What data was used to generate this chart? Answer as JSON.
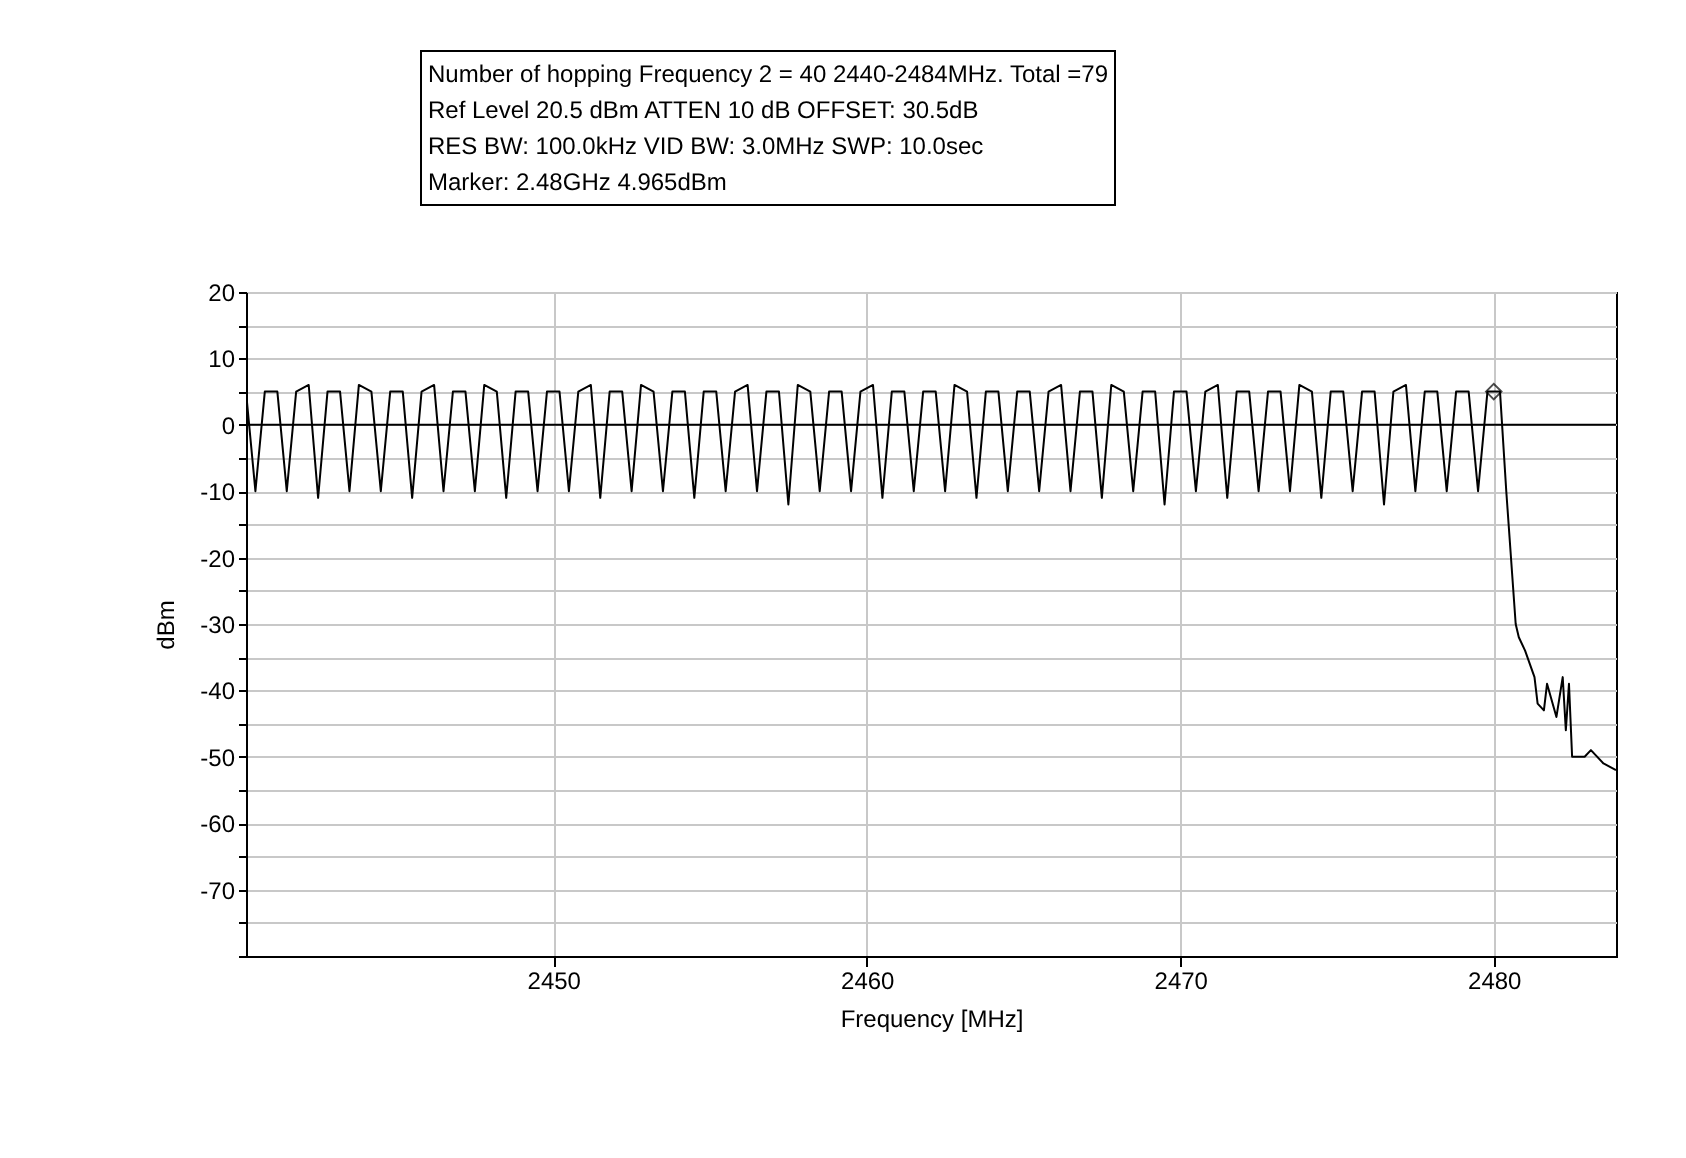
{
  "chart_data": {
    "type": "line",
    "xlabel": "Frequency [MHz]",
    "ylabel": "dBm",
    "annotations": [
      "Number of hopping Frequency  2 = 40  2440-2484MHz. Total =79",
      "Ref Level 20.5 dBm    ATTEN 10 dB    OFFSET: 30.5dB",
      "RES BW: 100.0kHz  VID BW: 3.0MHz  SWP: 10.0sec",
      "Marker: 2.48GHz  4.965dBm"
    ],
    "xlim": [
      2440.2,
      2483.9
    ],
    "xticks": [
      2450,
      2460,
      2470,
      2480
    ],
    "ylim": [
      -80,
      20
    ],
    "yticks": [
      20,
      {
        "value": 15,
        "label": null
      },
      10,
      {
        "value": 5,
        "label": null
      },
      0,
      {
        "value": -5,
        "label": null
      },
      -10,
      {
        "value": -15,
        "label": null
      },
      -20,
      {
        "value": -25,
        "label": null
      },
      -30,
      {
        "value": -35,
        "label": null
      },
      -40,
      {
        "value": -45,
        "label": null
      },
      -50,
      {
        "value": -55,
        "label": null
      },
      -60,
      {
        "value": -65,
        "label": null
      },
      -70,
      {
        "value": -75,
        "label": null
      },
      {
        "value": -80,
        "label": null
      }
    ],
    "grid": true,
    "line_style": "solid",
    "ref_lines": [
      {
        "axis": "y",
        "value": 0,
        "color": "#000000"
      }
    ],
    "series": [
      {
        "color": "#000000",
        "marker": "none",
        "x": [
          2440.2,
          2440.5,
          2440.8,
          2441.2,
          2441.5,
          2441.8,
          2442.2,
          2442.5,
          2442.8,
          2443.2,
          2443.5,
          2443.8,
          2444.2,
          2444.5,
          2444.8,
          2445.2,
          2445.5,
          2445.8,
          2446.2,
          2446.5,
          2446.8,
          2447.2,
          2447.5,
          2447.8,
          2448.2,
          2448.5,
          2448.8,
          2449.2,
          2449.5,
          2449.8,
          2450.2,
          2450.5,
          2450.8,
          2451.2,
          2451.5,
          2451.8,
          2452.2,
          2452.5,
          2452.8,
          2453.2,
          2453.5,
          2453.8,
          2454.2,
          2454.5,
          2454.8,
          2455.2,
          2455.5,
          2455.8,
          2456.2,
          2456.5,
          2456.8,
          2457.2,
          2457.5,
          2457.8,
          2458.2,
          2458.5,
          2458.8,
          2459.2,
          2459.5,
          2459.8,
          2460.2,
          2460.5,
          2460.8,
          2461.2,
          2461.5,
          2461.8,
          2462.2,
          2462.5,
          2462.8,
          2463.2,
          2463.5,
          2463.8,
          2464.2,
          2464.5,
          2464.8,
          2465.2,
          2465.5,
          2465.8,
          2466.2,
          2466.5,
          2466.8,
          2467.2,
          2467.5,
          2467.8,
          2468.2,
          2468.5,
          2468.8,
          2469.2,
          2469.5,
          2469.8,
          2470.2,
          2470.5,
          2470.8,
          2471.2,
          2471.5,
          2471.8,
          2472.2,
          2472.5,
          2472.8,
          2473.2,
          2473.5,
          2473.8,
          2474.2,
          2474.5,
          2474.8,
          2475.2,
          2475.5,
          2475.8,
          2476.2,
          2476.5,
          2476.8,
          2477.2,
          2477.5,
          2477.8,
          2478.2,
          2478.5,
          2478.8,
          2479.2,
          2479.5,
          2479.8,
          2480.2,
          2480.4,
          2480.7,
          2480.8,
          2481.0,
          2481.3,
          2481.4,
          2481.6,
          2481.7,
          2482.0,
          2482.2,
          2482.3,
          2482.4,
          2482.5,
          2482.9,
          2483.1,
          2483.5,
          2483.9
        ],
        "values": [
          5,
          -10,
          5,
          5,
          -10,
          5,
          6,
          -11,
          5,
          5,
          -10,
          6,
          5,
          -10,
          5,
          5,
          -11,
          5,
          6,
          -10,
          5,
          5,
          -10,
          6,
          5,
          -11,
          5,
          5,
          -10,
          5,
          5,
          -10,
          5,
          6,
          -11,
          5,
          5,
          -10,
          6,
          5,
          -10,
          5,
          5,
          -11,
          5,
          5,
          -10,
          5,
          6,
          -10,
          5,
          5,
          -12,
          6,
          5,
          -10,
          5,
          5,
          -10,
          5,
          6,
          -11,
          5,
          5,
          -10,
          5,
          5,
          -10,
          6,
          5,
          -11,
          5,
          5,
          -10,
          5,
          5,
          -10,
          5,
          6,
          -10,
          5,
          5,
          -11,
          6,
          5,
          -10,
          5,
          5,
          -12,
          5,
          5,
          -10,
          5,
          6,
          -11,
          5,
          5,
          -10,
          5,
          5,
          -10,
          6,
          5,
          -11,
          5,
          5,
          -10,
          5,
          5,
          -12,
          5,
          6,
          -10,
          5,
          5,
          -10,
          5,
          5,
          -10,
          5,
          5,
          -10,
          -30,
          -32,
          -34,
          -38,
          -42,
          -43,
          -39,
          -44,
          -38,
          -46,
          -39,
          -50,
          -50,
          -49,
          -51,
          -52
        ]
      },
      {
        "type": "scatter",
        "color": "#000000",
        "marker": "diamond",
        "x": [
          2480
        ],
        "values": [
          5
        ]
      }
    ]
  }
}
